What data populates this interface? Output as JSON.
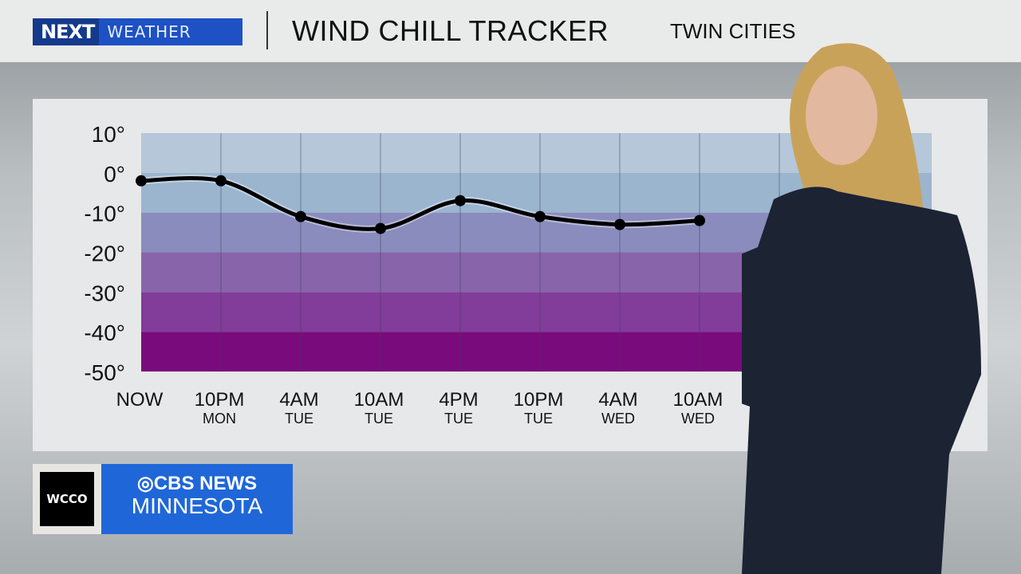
{
  "header": {
    "logo_next": "NEXT",
    "logo_weather": "WEATHER",
    "title": "WIND CHILL TRACKER",
    "location": "TWIN CITIES"
  },
  "branding": {
    "station": "WCCO",
    "network": "CBS NEWS",
    "region": "MINNESOTA"
  },
  "colors": {
    "logo_blue": "#1d51c4",
    "line": "#000000",
    "bands": [
      "#b5c7d9",
      "#9bb5cf",
      "#8a8cbd",
      "#8865ab",
      "#823c9a",
      "#7a0b7c"
    ]
  },
  "chart_data": {
    "type": "line",
    "title": "WIND CHILL TRACKER",
    "ylim": [
      -50,
      10
    ],
    "yticks": [
      "10°",
      "0°",
      "-10°",
      "-20°",
      "-30°",
      "-40°",
      "-50°"
    ],
    "ytick_values": [
      10,
      0,
      -10,
      -20,
      -30,
      -40,
      -50
    ],
    "categories": [
      {
        "time": "NOW",
        "day": ""
      },
      {
        "time": "10PM",
        "day": "MON"
      },
      {
        "time": "4AM",
        "day": "TUE"
      },
      {
        "time": "10AM",
        "day": "TUE"
      },
      {
        "time": "4PM",
        "day": "TUE"
      },
      {
        "time": "10PM",
        "day": "TUE"
      },
      {
        "time": "4AM",
        "day": "WED"
      },
      {
        "time": "10AM",
        "day": "WED"
      }
    ],
    "values": [
      -2,
      -2,
      -11,
      -14,
      -7,
      -11,
      -13,
      -12
    ],
    "grid": true,
    "smooth": true
  }
}
